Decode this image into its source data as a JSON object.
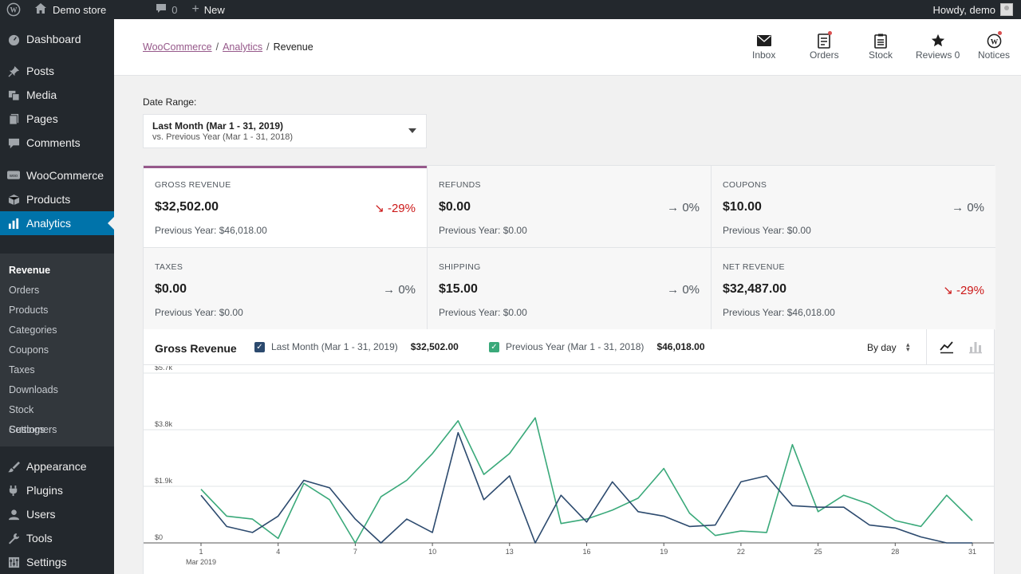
{
  "adminbar": {
    "site_name": "Demo store",
    "comments_count": "0",
    "new_label": "New",
    "howdy": "Howdy, demo"
  },
  "sidebar": {
    "dashboard": "Dashboard",
    "posts": "Posts",
    "media": "Media",
    "pages": "Pages",
    "comments": "Comments",
    "woocommerce": "WooCommerce",
    "products": "Products",
    "analytics": "Analytics",
    "submenu": [
      "Revenue",
      "Orders",
      "Products",
      "Categories",
      "Coupons",
      "Taxes",
      "Downloads",
      "Stock",
      "Customers",
      "Settings"
    ],
    "appearance": "Appearance",
    "plugins": "Plugins",
    "users": "Users",
    "tools": "Tools",
    "settings": "Settings"
  },
  "header": {
    "breadcrumb": [
      "WooCommerce",
      "Analytics",
      "Revenue"
    ],
    "buttons": {
      "inbox": "Inbox",
      "orders": "Orders",
      "stock": "Stock",
      "reviews": "Reviews 0",
      "notices": "Notices"
    }
  },
  "date_range": {
    "label": "Date Range:",
    "main": "Last Month (Mar 1 - 31, 2019)",
    "compare": "vs. Previous Year (Mar 1 - 31, 2018)"
  },
  "summary": [
    {
      "label": "GROSS REVENUE",
      "value": "$32,502.00",
      "delta": "-29%",
      "prev": "Previous Year: $46,018.00"
    },
    {
      "label": "REFUNDS",
      "value": "$0.00",
      "delta": "0%",
      "prev": "Previous Year: $0.00"
    },
    {
      "label": "COUPONS",
      "value": "$10.00",
      "delta": "0%",
      "prev": "Previous Year: $0.00"
    },
    {
      "label": "TAXES",
      "value": "$0.00",
      "delta": "0%",
      "prev": "Previous Year: $0.00"
    },
    {
      "label": "SHIPPING",
      "value": "$15.00",
      "delta": "0%",
      "prev": "Previous Year: $0.00"
    },
    {
      "label": "NET REVENUE",
      "value": "$32,487.00",
      "delta": "-29%",
      "prev": "Previous Year: $46,018.00"
    }
  ],
  "chart_panel": {
    "title": "Gross Revenue",
    "legend": [
      {
        "label": "Last Month (Mar 1 - 31, 2019)",
        "total": "$32,502.00"
      },
      {
        "label": "Previous Year (Mar 1 - 31, 2018)",
        "total": "$46,018.00"
      }
    ],
    "interval": "By day"
  },
  "colors": {
    "accent": "#96588a",
    "series_current": "#2c4a6e",
    "series_previous": "#3aa97a",
    "negative": "#cc1818",
    "admin_blue": "#0073aa"
  },
  "chart_data": {
    "type": "line",
    "x": [
      1,
      2,
      3,
      4,
      5,
      6,
      7,
      8,
      9,
      10,
      11,
      12,
      13,
      14,
      15,
      16,
      17,
      18,
      19,
      20,
      21,
      22,
      23,
      24,
      25,
      26,
      27,
      28,
      29,
      30,
      31
    ],
    "x_tick_labels": [
      "1",
      "4",
      "7",
      "10",
      "13",
      "16",
      "19",
      "22",
      "25",
      "28",
      "31"
    ],
    "x_sublabel": "Mar 2019",
    "y_tick_labels": [
      "$0",
      "$1.9k",
      "$3.8k",
      "$5.7k"
    ],
    "y_ticks": [
      0,
      1900,
      3800,
      5700
    ],
    "ylim": [
      0,
      5700
    ],
    "series": [
      {
        "name": "Last Month (Mar 1 - 31, 2019)",
        "values": [
          1600,
          550,
          350,
          900,
          2100,
          1850,
          800,
          0,
          800,
          350,
          3700,
          1450,
          2250,
          0,
          1600,
          700,
          2050,
          1050,
          900,
          550,
          600,
          2050,
          2250,
          1250,
          1200,
          1200,
          600,
          500,
          200,
          0,
          0
        ]
      },
      {
        "name": "Previous Year (Mar 1 - 31, 2018)",
        "values": [
          1800,
          900,
          800,
          150,
          2000,
          1450,
          0,
          1550,
          2100,
          3000,
          4100,
          2300,
          3000,
          4200,
          650,
          800,
          1100,
          1500,
          2500,
          1000,
          250,
          400,
          350,
          3300,
          1050,
          1600,
          1300,
          750,
          550,
          1600,
          750
        ]
      }
    ]
  }
}
